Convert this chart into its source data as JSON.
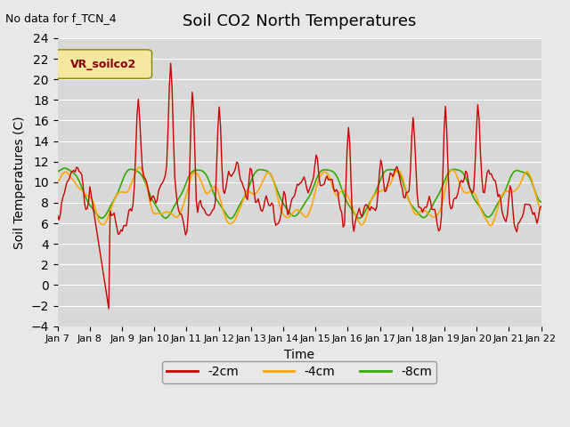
{
  "title": "Soil CO2 North Temperatures",
  "subtitle": "No data for f_TCN_4",
  "xlabel": "Time",
  "ylabel": "Soil Temperatures (C)",
  "legend_label": "VR_soilco2",
  "ylim": [
    -4,
    24
  ],
  "yticks": [
    -4,
    -2,
    0,
    2,
    4,
    6,
    8,
    10,
    12,
    14,
    16,
    18,
    20,
    22,
    24
  ],
  "xtick_labels": [
    "Jan 7",
    "Jan 8",
    "Jan 9",
    "Jan 10",
    "Jan 11",
    "Jan 12",
    "Jan 13",
    "Jan 14",
    "Jan 15",
    "Jan 16",
    "Jan 17",
    "Jan 18",
    "Jan 19",
    "Jan 20",
    "Jan 21",
    "Jan 22"
  ],
  "color_2cm": "#cc0000",
  "color_4cm": "#ffa500",
  "color_8cm": "#33aa00",
  "bg_color": "#e8e8e8",
  "plot_bg_color": "#d8d8d8",
  "label_2cm": "-2cm",
  "label_4cm": "-4cm",
  "label_8cm": "-8cm",
  "n_points": 360
}
